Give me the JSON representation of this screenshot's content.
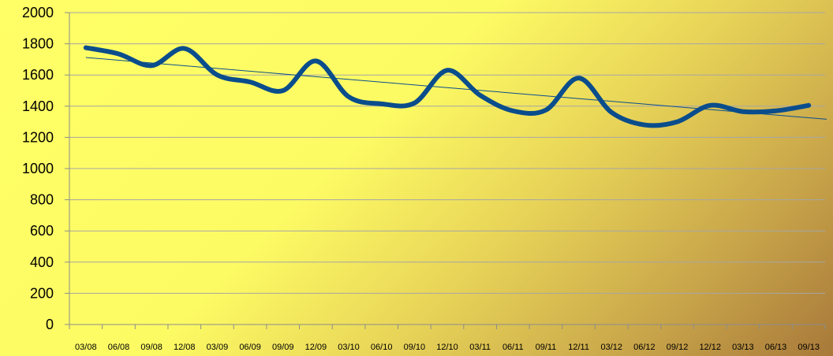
{
  "chart_data": {
    "type": "line",
    "title": "",
    "xlabel": "",
    "ylabel": "",
    "ylim": [
      0,
      2000
    ],
    "yticks": [
      0,
      200,
      400,
      600,
      800,
      1000,
      1200,
      1400,
      1600,
      1800,
      2000
    ],
    "grid": true,
    "legend": "none",
    "categories": [
      "03/08",
      "06/08",
      "09/08",
      "12/08",
      "03/09",
      "06/09",
      "09/09",
      "12/09",
      "03/10",
      "06/10",
      "09/10",
      "12/10",
      "03/11",
      "06/11",
      "09/11",
      "12/11",
      "03/12",
      "06/12",
      "09/12",
      "12/12",
      "03/13",
      "06/13",
      "09/13"
    ],
    "series": [
      {
        "values": [
          1775,
          1735,
          1660,
          1770,
          1600,
          1555,
          1500,
          1690,
          1460,
          1415,
          1420,
          1630,
          1470,
          1370,
          1375,
          1580,
          1360,
          1280,
          1300,
          1405,
          1365,
          1370,
          1405
        ],
        "color": "#0a4d8c",
        "smooth": true
      }
    ],
    "trendline": {
      "start": 1712,
      "end": 1316,
      "color": "#0a4d8c"
    },
    "colors": {
      "axis": "#8c8c8c",
      "grid": "#a6a6a6"
    }
  }
}
